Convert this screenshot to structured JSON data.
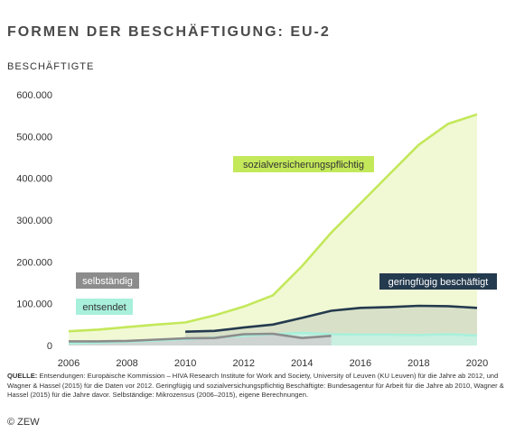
{
  "title": "FORMEN DER BESCHÄFTIGUNG: EU-2",
  "copyright": "© ZEW",
  "source": {
    "heading": "QUELLE:",
    "text": "Entsendungen: Europäische Kommission – HIVA Research Institute for Work and Society, University of Leuven (KU Leuven) für die Jahre ab 2012, und Wagner & Hassel (2015) für die Daten vor 2012. Geringfügig und sozialversichungspflichtig Beschäftigte: Bundesagentur für Arbeit für die Jahre ab 2010, Wagner & Hassel (2015) für die Jahre davor. Selbständige: Mikrozensus (2006–2015), eigene Berechnungen."
  },
  "chart_data": {
    "type": "area",
    "title": "FORMEN DER BESCHÄFTIGUNG: EU-2",
    "ylabel": "BESCHÄFTIGTE",
    "xlabel": "",
    "xlim": [
      2006,
      2020
    ],
    "ylim": [
      0,
      600000
    ],
    "xticks": [
      2006,
      2008,
      2010,
      2012,
      2014,
      2016,
      2018,
      2020
    ],
    "yticks": [
      {
        "value": 0,
        "label": "0"
      },
      {
        "value": 100000,
        "label": "100.000"
      },
      {
        "value": 200000,
        "label": "200.000"
      },
      {
        "value": 300000,
        "label": "300.000"
      },
      {
        "value": 400000,
        "label": "400.000"
      },
      {
        "value": 500000,
        "label": "500.000"
      },
      {
        "value": 600000,
        "label": "600.000"
      }
    ],
    "grid": false,
    "series": [
      {
        "name": "sozialversicherungspflichtig",
        "color": "#c3e85a",
        "fill": "#eef8cc",
        "x": [
          2006,
          2007,
          2008,
          2009,
          2010,
          2011,
          2012,
          2013,
          2014,
          2015,
          2016,
          2017,
          2018,
          2019,
          2020
        ],
        "values": [
          34000,
          38000,
          44000,
          50000,
          55000,
          72000,
          93000,
          120000,
          190000,
          270000,
          340000,
          410000,
          480000,
          530000,
          553000
        ]
      },
      {
        "name": "geringfügig beschäftigt",
        "color": "#243a4e",
        "fill": "#d4ddc6",
        "x": [
          2010,
          2011,
          2012,
          2013,
          2014,
          2015,
          2016,
          2017,
          2018,
          2019,
          2020
        ],
        "values": [
          33000,
          35000,
          43000,
          50000,
          66000,
          83000,
          90000,
          92000,
          95000,
          94000,
          90000
        ]
      },
      {
        "name": "entsendet",
        "color": "#a8f0dc",
        "fill": "#c7f2e4",
        "x": [
          2006,
          2007,
          2008,
          2009,
          2010,
          2011,
          2012,
          2013,
          2014,
          2015,
          2016,
          2017,
          2018,
          2019,
          2020
        ],
        "values": [
          5000,
          7000,
          9000,
          12000,
          15000,
          19000,
          23000,
          27000,
          30000,
          27000,
          26000,
          26000,
          25000,
          27000,
          24000
        ]
      },
      {
        "name": "selbständig",
        "color": "#8c8c8c",
        "fill": "#cfcfcf",
        "x": [
          2006,
          2007,
          2008,
          2009,
          2010,
          2011,
          2012,
          2013,
          2014,
          2015
        ],
        "values": [
          10000,
          10000,
          11000,
          14000,
          17000,
          18000,
          27000,
          28000,
          18000,
          23000
        ]
      }
    ],
    "labels": [
      {
        "series": "sozialversicherungspflichtig",
        "text": "sozialversicherungspflichtig",
        "bg": "#c3e85a",
        "fg": "#333333"
      },
      {
        "series": "geringfügig beschäftigt",
        "text": "geringfügig beschäftigt",
        "bg": "#243a4e",
        "fg": "#ffffff"
      },
      {
        "series": "selbständig",
        "text": "selbständig",
        "bg": "#8c8c8c",
        "fg": "#ffffff"
      },
      {
        "series": "entsendet",
        "text": "entsendet",
        "bg": "#a8f0dc",
        "fg": "#333333"
      }
    ]
  }
}
